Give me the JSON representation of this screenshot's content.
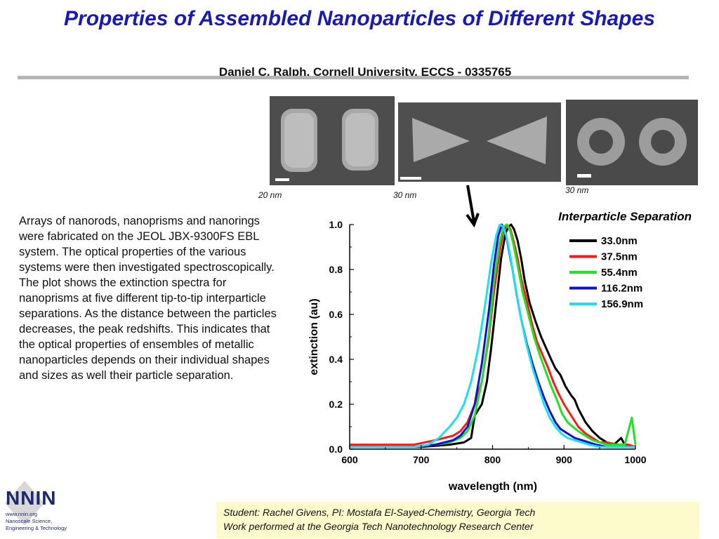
{
  "title": "Properties of Assembled Nanoparticles of Different Shapes",
  "subtitle": "Daniel C. Ralph, Cornell University, ECCS - 0335765",
  "images": {
    "rods_scale": "20 nm",
    "prisms_scale": "30 nm",
    "rings_scale": "30 nm"
  },
  "body_text": {
    "paragraph1": "Arrays of nanorods, nanoprisms and nanorings were fabricated on the JEOL JBX-9300FS EBL system.  The optical properties of the various systems were then investigated spectroscopically.",
    "paragraph2": "The plot shows the extinction spectra for nanoprisms at five different tip-to-tip interparticle separations.  As the distance between the particles decreases, the peak redshifts.  This indicates that the optical properties of ensembles of metallic nanoparticles depends on their individual shapes and sizes as well their particle separation."
  },
  "footer": {
    "line1": "Student: Rachel Givens, PI: Mostafa El-Sayed-Chemistry, Georgia Tech",
    "line2": "Work performed at the Georgia Tech Nanotechnology Research Center"
  },
  "logo": {
    "name": "NNIN",
    "sub1": "www.nnin.org",
    "sub2": "Nanoscale Science,",
    "sub3": "Engineering & Technology"
  },
  "chart_data": {
    "type": "line",
    "title": "",
    "legend_title": "Interparticle Separation",
    "xlabel": "wavelength (nm)",
    "ylabel": "extinction (au)",
    "xlim": [
      600,
      1000
    ],
    "ylim": [
      0,
      1.0
    ],
    "xticks": [
      "600",
      "700",
      "800",
      "900",
      "1000"
    ],
    "yticks": [
      "0.0",
      "0.2",
      "0.4",
      "0.6",
      "0.8",
      "1.0"
    ],
    "legend_position": "top-right",
    "series": [
      {
        "name": "33.0nm",
        "color": "#000000",
        "x": [
          600,
          640,
          700,
          740,
          760,
          770,
          775,
          785,
          792,
          798,
          805,
          812,
          818,
          822,
          826,
          830,
          835,
          840,
          845,
          852,
          860,
          868,
          875,
          882,
          888,
          895,
          902,
          910,
          915,
          920,
          930,
          940,
          950,
          960,
          970,
          980,
          985,
          1000
        ],
        "y": [
          0.02,
          0.01,
          0.01,
          0.02,
          0.03,
          0.05,
          0.15,
          0.2,
          0.3,
          0.45,
          0.65,
          0.85,
          0.96,
          0.99,
          1.0,
          0.98,
          0.93,
          0.85,
          0.75,
          0.65,
          0.57,
          0.5,
          0.45,
          0.4,
          0.36,
          0.33,
          0.28,
          0.24,
          0.22,
          0.18,
          0.12,
          0.08,
          0.05,
          0.03,
          0.02,
          0.05,
          0.02,
          0.01
        ]
      },
      {
        "name": "37.5nm",
        "color": "#ff1a1a",
        "x": [
          600,
          640,
          690,
          720,
          745,
          755,
          765,
          775,
          785,
          795,
          802,
          810,
          815,
          820,
          825,
          830,
          835,
          840,
          848,
          855,
          862,
          870,
          878,
          885,
          892,
          900,
          910,
          920,
          930,
          940,
          950,
          960,
          975,
          990,
          1000
        ],
        "y": [
          0.02,
          0.02,
          0.02,
          0.04,
          0.06,
          0.08,
          0.12,
          0.2,
          0.3,
          0.5,
          0.7,
          0.88,
          0.97,
          1.0,
          0.98,
          0.92,
          0.85,
          0.76,
          0.66,
          0.56,
          0.48,
          0.42,
          0.36,
          0.3,
          0.25,
          0.2,
          0.15,
          0.1,
          0.07,
          0.05,
          0.03,
          0.03,
          0.02,
          0.02,
          0.01
        ]
      },
      {
        "name": "55.4nm",
        "color": "#22e022",
        "x": [
          600,
          640,
          690,
          720,
          740,
          755,
          765,
          775,
          785,
          795,
          802,
          810,
          815,
          820,
          825,
          830,
          835,
          842,
          850,
          858,
          866,
          874,
          882,
          890,
          897,
          905,
          912,
          920,
          930,
          940,
          950,
          960,
          970,
          985,
          995,
          1000
        ],
        "y": [
          0.01,
          0.01,
          0.01,
          0.02,
          0.03,
          0.05,
          0.08,
          0.15,
          0.3,
          0.52,
          0.75,
          0.92,
          0.99,
          1.0,
          0.97,
          0.9,
          0.82,
          0.7,
          0.6,
          0.5,
          0.42,
          0.35,
          0.28,
          0.22,
          0.16,
          0.12,
          0.1,
          0.08,
          0.06,
          0.04,
          0.03,
          0.02,
          0.02,
          0.02,
          0.14,
          0.02
        ]
      },
      {
        "name": "116.2nm",
        "color": "#1010d0",
        "x": [
          600,
          640,
          690,
          720,
          745,
          755,
          765,
          775,
          785,
          795,
          802,
          808,
          813,
          818,
          822,
          828,
          833,
          840,
          848,
          856,
          864,
          872,
          880,
          888,
          895,
          905,
          915,
          925,
          935,
          945,
          960,
          980,
          1000
        ],
        "y": [
          0.01,
          0.01,
          0.01,
          0.02,
          0.04,
          0.06,
          0.1,
          0.2,
          0.38,
          0.62,
          0.82,
          0.95,
          1.0,
          0.97,
          0.9,
          0.8,
          0.7,
          0.58,
          0.47,
          0.38,
          0.3,
          0.23,
          0.17,
          0.12,
          0.09,
          0.07,
          0.05,
          0.04,
          0.03,
          0.02,
          0.01,
          0.01,
          0.01
        ]
      },
      {
        "name": "156.9nm",
        "color": "#1ae0f0",
        "x": [
          600,
          640,
          690,
          710,
          725,
          740,
          750,
          760,
          770,
          780,
          790,
          798,
          805,
          810,
          815,
          820,
          826,
          832,
          840,
          848,
          856,
          864,
          872,
          880,
          888,
          896,
          905,
          915,
          925,
          935,
          950,
          970,
          1000
        ],
        "y": [
          0.01,
          0.01,
          0.01,
          0.02,
          0.05,
          0.1,
          0.14,
          0.2,
          0.3,
          0.45,
          0.65,
          0.83,
          0.95,
          1.0,
          0.99,
          0.94,
          0.84,
          0.72,
          0.58,
          0.46,
          0.36,
          0.28,
          0.2,
          0.14,
          0.1,
          0.07,
          0.05,
          0.04,
          0.03,
          0.02,
          0.01,
          0.01,
          0.01
        ]
      }
    ]
  }
}
